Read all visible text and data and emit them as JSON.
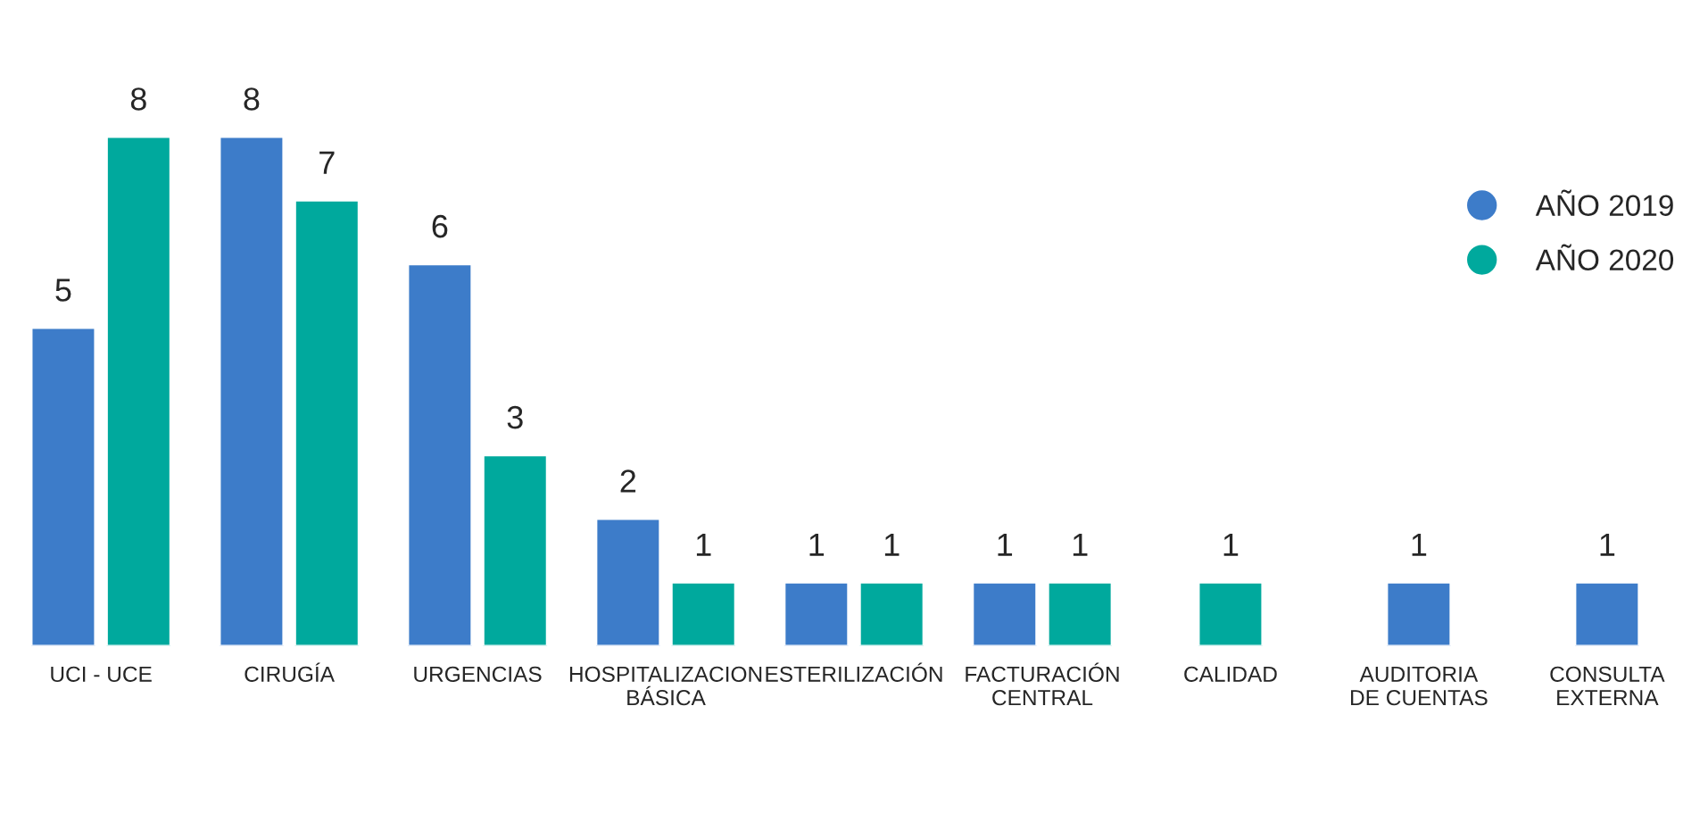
{
  "chart_data": {
    "type": "bar",
    "categories": [
      "UCI - UCE",
      "CIRUGÍA",
      "URGENCIAS",
      "HOSPITALIZACION\nBÁSICA",
      "ESTERILIZACIÓN",
      "FACTURACIÓN\nCENTRAL",
      "CALIDAD",
      "AUDITORIA\nDE CUENTAS",
      "CONSULTA\nEXTERNA"
    ],
    "series": [
      {
        "name": "AÑO 2019",
        "color": "#3d7cc9",
        "values": [
          5,
          8,
          6,
          2,
          1,
          1,
          null,
          1,
          1
        ]
      },
      {
        "name": "AÑO 2020",
        "color": "#00a99d",
        "values": [
          8,
          7,
          3,
          1,
          1,
          1,
          1,
          null,
          null
        ]
      }
    ],
    "data_labels": true,
    "legend": "right",
    "grid": false
  }
}
